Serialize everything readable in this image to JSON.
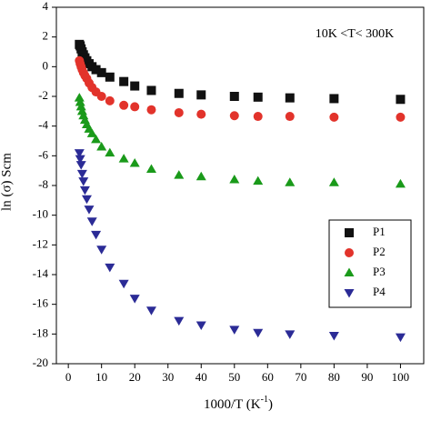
{
  "chart_data": {
    "type": "scatter",
    "annotation": "10K <T< 300K",
    "x_label": "1000/T (K",
    "x_label_sup": "-1",
    "x_label_end": ")",
    "y_label": "ln (σ) Scm",
    "x": [
      3.33,
      3.57,
      3.85,
      4.17,
      4.55,
      5,
      5.56,
      6.25,
      7.14,
      8.33,
      10,
      12.5,
      16.7,
      20,
      25,
      33.3,
      40,
      50,
      57.1,
      66.7,
      80,
      100
    ],
    "series": [
      {
        "name": "P1",
        "color": "#111111",
        "marker": "square",
        "values": [
          1.5,
          1.4,
          1.2,
          1.0,
          0.8,
          0.6,
          0.4,
          0.2,
          0,
          -0.2,
          -0.4,
          -0.7,
          -1.0,
          -1.3,
          -1.6,
          -1.8,
          -1.9,
          -2.0,
          -2.05,
          -2.1,
          -2.15,
          -2.2
        ]
      },
      {
        "name": "P2",
        "color": "#e2332b",
        "marker": "circle",
        "values": [
          0.4,
          0.2,
          0,
          -0.2,
          -0.4,
          -0.6,
          -0.8,
          -1.1,
          -1.4,
          -1.7,
          -2.0,
          -2.3,
          -2.6,
          -2.7,
          -2.9,
          -3.1,
          -3.2,
          -3.3,
          -3.35,
          -3.35,
          -3.4,
          -3.4
        ]
      },
      {
        "name": "P3",
        "color": "#1a9a1a",
        "marker": "triangle-up",
        "values": [
          -2.1,
          -2.4,
          -2.7,
          -3.0,
          -3.3,
          -3.6,
          -3.9,
          -4.2,
          -4.5,
          -4.9,
          -5.4,
          -5.8,
          -6.2,
          -6.5,
          -6.9,
          -7.3,
          -7.4,
          -7.6,
          -7.7,
          -7.8,
          -7.8,
          -7.9
        ]
      },
      {
        "name": "P4",
        "color": "#2b2b96",
        "marker": "triangle-down",
        "values": [
          -5.8,
          -6.2,
          -6.6,
          -7.2,
          -7.7,
          -8.3,
          -8.9,
          -9.6,
          -10.4,
          -11.3,
          -12.3,
          -13.5,
          -14.6,
          -15.6,
          -16.4,
          -17.1,
          -17.4,
          -17.7,
          -17.9,
          -18.0,
          -18.1,
          -18.2
        ]
      }
    ],
    "xlim": [
      -3.6,
      107
    ],
    "ylim": [
      -20,
      4
    ],
    "xticks": [
      0,
      10,
      20,
      30,
      40,
      50,
      60,
      70,
      80,
      90,
      100
    ],
    "yticks": [
      -20,
      -18,
      -16,
      -14,
      -12,
      -10,
      -8,
      -6,
      -4,
      -2,
      0,
      2,
      4
    ],
    "legend": "right"
  }
}
